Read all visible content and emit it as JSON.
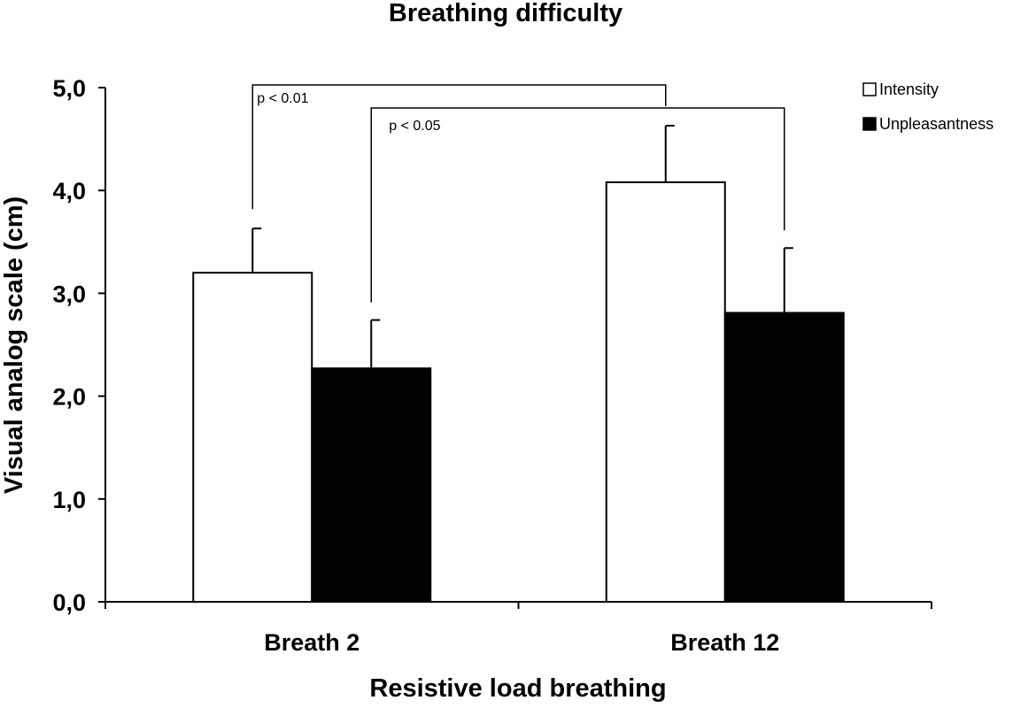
{
  "chart_data": {
    "type": "bar",
    "title": "Breathing difficulty",
    "xlabel": "Resistive load breathing",
    "ylabel": "Visual analog scale (cm)",
    "categories": [
      "Breath 2",
      "Breath 12"
    ],
    "series": [
      {
        "name": "Intensity",
        "values": [
          3.2,
          4.08
        ],
        "errors": [
          0.43,
          0.55
        ],
        "color": "#ffffff"
      },
      {
        "name": "Unpleasantness",
        "values": [
          2.27,
          2.81
        ],
        "errors": [
          0.47,
          0.63
        ],
        "color": "#000000"
      }
    ],
    "ylim": [
      0,
      5
    ],
    "yticks": [
      "0,0",
      "1,0",
      "2,0",
      "3,0",
      "4,0",
      "5,0"
    ],
    "ytick_values": [
      0,
      1,
      2,
      3,
      4,
      5
    ],
    "grid": false,
    "legend_position": "top-right",
    "annotations": [
      {
        "text": "p < 0.01",
        "from_category": 0,
        "from_series": 0,
        "to_category": 1,
        "to_series": 0
      },
      {
        "text": "p < 0.05",
        "from_category": 0,
        "from_series": 1,
        "to_category": 1,
        "to_series": 1
      }
    ]
  }
}
